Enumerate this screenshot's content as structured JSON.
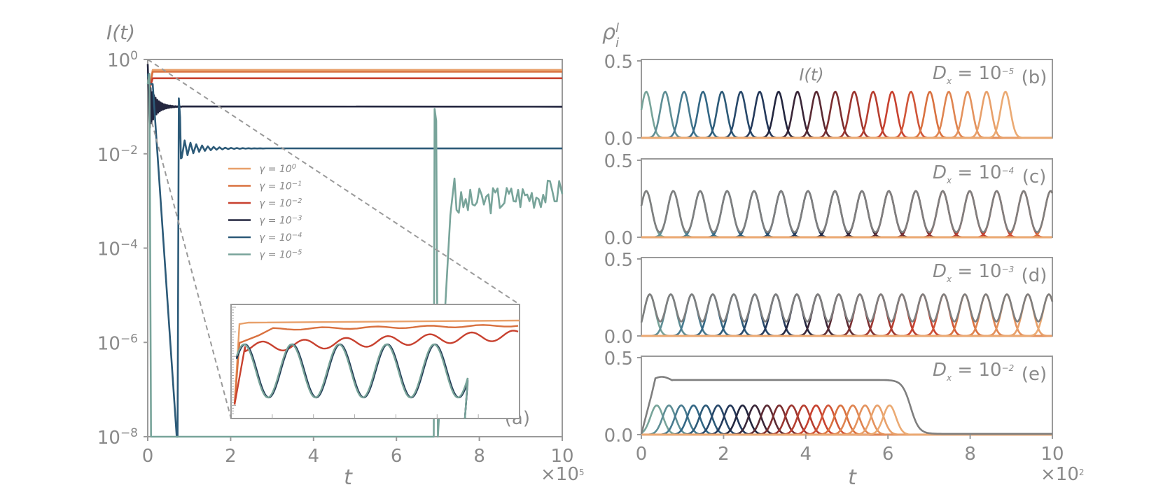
{
  "chart_data": [
    {
      "panel": "(a)",
      "type": "line",
      "ylabel": "I(t)",
      "xlabel": "t",
      "x_multiplier": "×10^5",
      "yscale": "log",
      "ylim": [
        1e-08,
        1
      ],
      "xlim": [
        0,
        10
      ],
      "x_ticks": [
        "0",
        "2",
        "4",
        "6",
        "8",
        "10"
      ],
      "y_ticks": [
        {
          "base": "10",
          "exp": "0"
        },
        {
          "base": "10",
          "exp": "−2"
        },
        {
          "base": "10",
          "exp": "−4"
        },
        {
          "base": "10",
          "exp": "−6"
        },
        {
          "base": "10",
          "exp": "−8"
        }
      ],
      "legend_position": "center-left",
      "series": [
        {
          "name": "γ = 10^0",
          "legend": {
            "base": "γ = 10",
            "exp": "0"
          },
          "color": "#E8A06A",
          "steady_value": 0.6
        },
        {
          "name": "γ = 10^-1",
          "legend": {
            "base": "γ = 10",
            "exp": "−1"
          },
          "color": "#D9713F",
          "steady_value": 0.55
        },
        {
          "name": "γ = 10^-2",
          "legend": {
            "base": "γ = 10",
            "exp": "−2"
          },
          "color": "#C8412F",
          "steady_value": 0.4
        },
        {
          "name": "γ = 10^-3",
          "legend": {
            "base": "γ = 10",
            "exp": "−3"
          },
          "color": "#23263F",
          "steady_value": 0.1
        },
        {
          "name": "γ = 10^-4",
          "legend": {
            "base": "γ = 10",
            "exp": "−4"
          },
          "color": "#2C5A78",
          "steady_value": 0.013
        },
        {
          "name": "γ = 10^-5",
          "legend": {
            "base": "γ = 10",
            "exp": "−5"
          },
          "color": "#78A49A",
          "steady_value": 0.0014
        }
      ],
      "inset": "zoom near t = 0"
    },
    {
      "panel": "(b)",
      "type": "line",
      "ylabel": "ρ_i^l",
      "annotation": "I(t)",
      "dx_label": {
        "base": "D",
        "sub": "x",
        "rest": " = 10",
        "exp": "−5"
      },
      "ylim": [
        0.0,
        0.5
      ],
      "y_ticks": [
        "0.0",
        "0.5"
      ],
      "peak_height": 0.3,
      "peak_width": 7,
      "n_peaks": 20,
      "first_peak": 7,
      "peak_spacing": 27,
      "envelope": false
    },
    {
      "panel": "(c)",
      "type": "line",
      "dx_label": {
        "base": "D",
        "sub": "x",
        "rest": " = 10",
        "exp": "−4"
      },
      "ylim": [
        0.0,
        0.5
      ],
      "y_ticks": [
        "0.0",
        "0.5"
      ],
      "peak_height": 0.3,
      "peak_width": 8,
      "n_peaks": 20,
      "first_peak": 7,
      "peak_spacing": 38.5,
      "envelope": true
    },
    {
      "panel": "(d)",
      "type": "line",
      "dx_label": {
        "base": "D",
        "sub": "x",
        "rest": " = 10",
        "exp": "−3"
      },
      "ylim": [
        0.0,
        0.5
      ],
      "y_ticks": [
        "0.0",
        "0.5"
      ],
      "peak_height": 0.27,
      "peak_width": 8,
      "n_peaks": 20,
      "first_peak": 12,
      "peak_spacing": 30,
      "envelope": true
    },
    {
      "panel": "(e)",
      "type": "line",
      "xlabel": "t",
      "x_multiplier": "×10^2",
      "xlim": [
        0,
        10
      ],
      "x_ticks": [
        "0",
        "2",
        "4",
        "6",
        "8",
        "10"
      ],
      "dx_label": {
        "base": "D",
        "sub": "x",
        "rest": " = 10",
        "exp": "−2"
      },
      "ylim": [
        0.0,
        0.5
      ],
      "y_ticks": [
        "0.0",
        "0.5"
      ],
      "peak_height": 0.19,
      "peak_width": 9,
      "n_peaks": 20,
      "first_peak": 22,
      "peak_spacing": 17.5,
      "envelope": true,
      "envelope_plateau": 0.35
    }
  ],
  "palette": [
    "#78A49A",
    "#5E8E95",
    "#477A8F",
    "#336785",
    "#2C5A78",
    "#27486A",
    "#23385A",
    "#23263F",
    "#3A2638",
    "#5A2A33",
    "#7B2E30",
    "#9C352F",
    "#B73E2F",
    "#C8412F",
    "#D05538",
    "#D9713F",
    "#DF8450",
    "#E4925D",
    "#E8A06A",
    "#EBAA73"
  ]
}
